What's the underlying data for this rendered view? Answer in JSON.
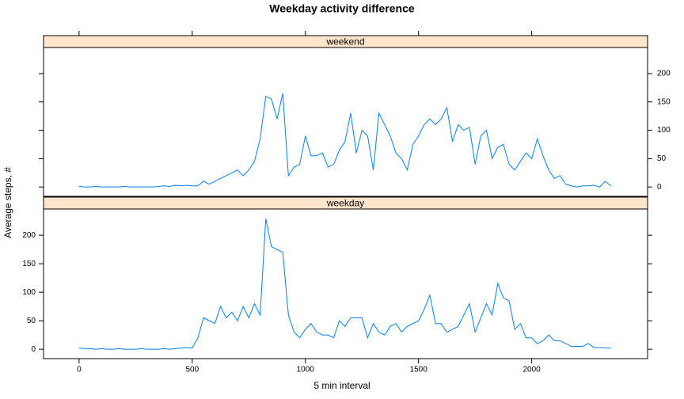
{
  "chart_data": {
    "type": "line",
    "title": "Weekday activity difference",
    "x_label": "5 min interval",
    "y_label": "Average steps, #",
    "x": [
      0,
      25,
      50,
      75,
      100,
      125,
      150,
      175,
      200,
      225,
      250,
      275,
      300,
      325,
      350,
      375,
      400,
      425,
      450,
      475,
      500,
      525,
      550,
      575,
      600,
      625,
      650,
      675,
      700,
      725,
      750,
      775,
      800,
      825,
      850,
      875,
      900,
      925,
      950,
      975,
      1000,
      1025,
      1050,
      1075,
      1100,
      1125,
      1150,
      1175,
      1200,
      1225,
      1250,
      1275,
      1300,
      1325,
      1350,
      1375,
      1400,
      1425,
      1450,
      1475,
      1500,
      1525,
      1550,
      1575,
      1600,
      1625,
      1650,
      1675,
      1700,
      1725,
      1750,
      1775,
      1800,
      1825,
      1850,
      1875,
      1900,
      1925,
      1950,
      1975,
      2000,
      2025,
      2050,
      2075,
      2100,
      2125,
      2150,
      2175,
      2200,
      2225,
      2250,
      2275,
      2300,
      2325,
      2350
    ],
    "series": [
      {
        "name": "weekend",
        "color": "#0080ff",
        "values": [
          1,
          0,
          0,
          1,
          0,
          0,
          0,
          0,
          1,
          0,
          0,
          0,
          0,
          0,
          1,
          2,
          1,
          3,
          2,
          3,
          2,
          2,
          10,
          5,
          10,
          15,
          20,
          25,
          30,
          20,
          30,
          45,
          85,
          160,
          155,
          120,
          165,
          20,
          35,
          40,
          90,
          55,
          55,
          60,
          35,
          40,
          65,
          80,
          130,
          60,
          100,
          90,
          30,
          130,
          110,
          90,
          60,
          50,
          30,
          75,
          90,
          110,
          120,
          110,
          120,
          140,
          80,
          110,
          100,
          105,
          40,
          90,
          100,
          50,
          70,
          75,
          40,
          30,
          45,
          60,
          50,
          85,
          55,
          30,
          15,
          20,
          5,
          2,
          0,
          2,
          2,
          3,
          0,
          10,
          2
        ]
      },
      {
        "name": "weekday",
        "color": "#0080ff",
        "values": [
          2,
          1,
          1,
          0,
          1,
          0,
          0,
          1,
          0,
          0,
          0,
          1,
          0,
          0,
          0,
          1,
          0,
          1,
          2,
          3,
          2,
          20,
          55,
          50,
          45,
          75,
          55,
          65,
          50,
          75,
          55,
          80,
          60,
          229,
          180,
          175,
          170,
          60,
          30,
          20,
          35,
          45,
          30,
          25,
          25,
          20,
          50,
          40,
          55,
          55,
          55,
          20,
          45,
          30,
          25,
          40,
          45,
          30,
          40,
          45,
          50,
          70,
          95,
          45,
          45,
          30,
          35,
          40,
          60,
          80,
          30,
          55,
          80,
          60,
          115,
          90,
          85,
          35,
          45,
          20,
          20,
          10,
          15,
          25,
          15,
          15,
          10,
          5,
          5,
          5,
          10,
          3,
          3,
          2,
          2
        ]
      }
    ],
    "xlim": [
      -157,
      2512
    ],
    "xticks": [
      0,
      500,
      1000,
      1500,
      2000
    ],
    "ylim": [
      -16.5,
      246
    ],
    "yticks": [
      0,
      50,
      100,
      150,
      200
    ],
    "strip_color": "#ffe5cc"
  }
}
